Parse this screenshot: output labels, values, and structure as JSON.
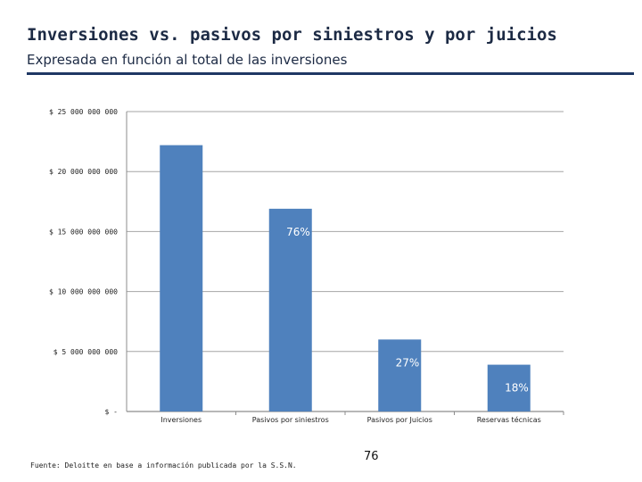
{
  "header": {
    "title": "Inversiones vs. pasivos por siniestros y por juicios",
    "subtitle": "Expresada en función al total de las inversiones"
  },
  "footer": {
    "source": "Fuente: Deloitte en base a información publicada por la S.S.N.",
    "page_number": "76"
  },
  "colors": {
    "bar": "#4f81bd",
    "rule": "#1f3864",
    "grid": "#a6a6a6"
  },
  "chart_data": {
    "type": "bar",
    "title": "",
    "xlabel": "",
    "ylabel": "",
    "ylim": [
      0,
      25000000000
    ],
    "grid": true,
    "y_ticks": [
      0,
      5000000000,
      10000000000,
      15000000000,
      20000000000,
      25000000000
    ],
    "y_tick_labels": [
      "$ -",
      "$ 5 000 000 000",
      "$ 10 000 000 000",
      "$ 15 000 000 000",
      "$ 20 000 000 000",
      "$ 25 000 000 000"
    ],
    "categories": [
      "Inversiones",
      "Pasivos por siniestros",
      "Pasivos por Juicios",
      "Reservas técnicas"
    ],
    "values": [
      22200000000,
      16900000000,
      6000000000,
      3900000000
    ],
    "data_labels": [
      "",
      "76%",
      "27%",
      "18%"
    ]
  }
}
